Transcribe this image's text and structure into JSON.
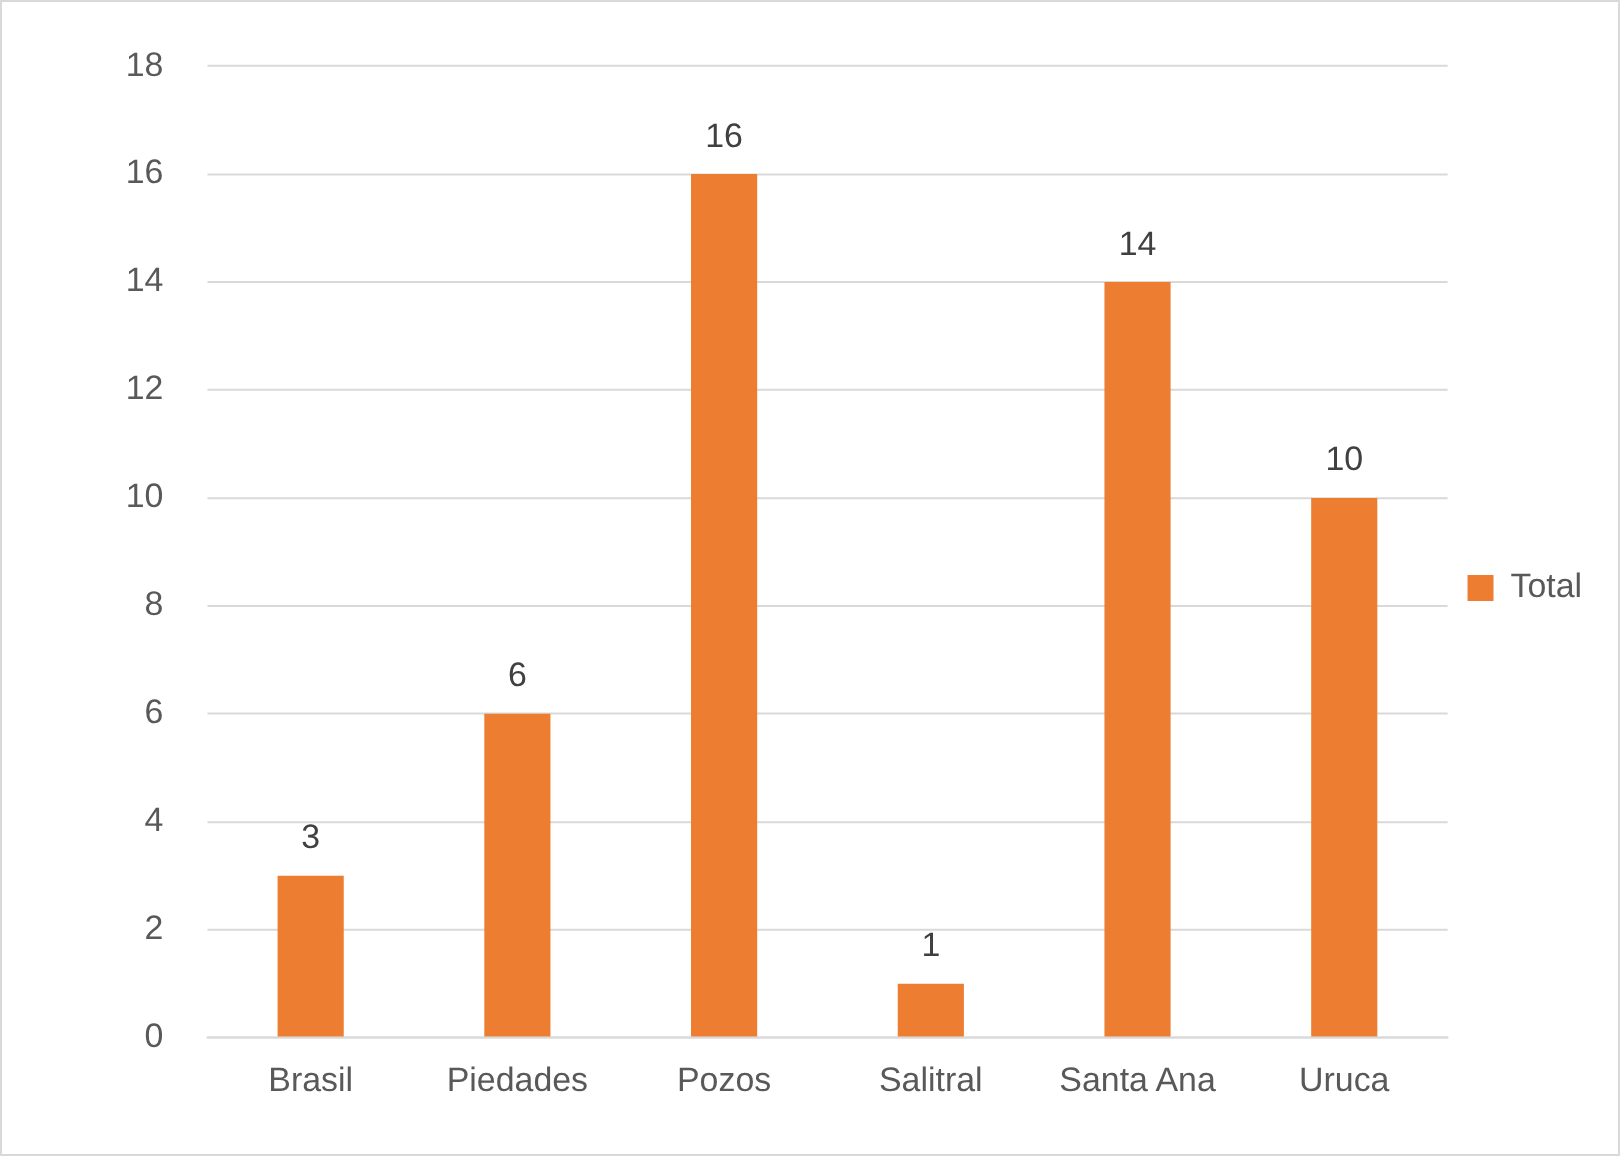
{
  "chart_data": {
    "type": "bar",
    "categories": [
      "Brasil",
      "Piedades",
      "Pozos",
      "Salitral",
      "Santa Ana",
      "Uruca"
    ],
    "series": [
      {
        "name": "Total",
        "color": "#ed7d31",
        "values": [
          3,
          6,
          16,
          1,
          14,
          10
        ]
      }
    ],
    "ylim": [
      0,
      18
    ],
    "yticks": [
      0,
      2,
      4,
      6,
      8,
      10,
      12,
      14,
      16,
      18
    ],
    "grid": "y",
    "legend": "right",
    "data_labels": true
  }
}
